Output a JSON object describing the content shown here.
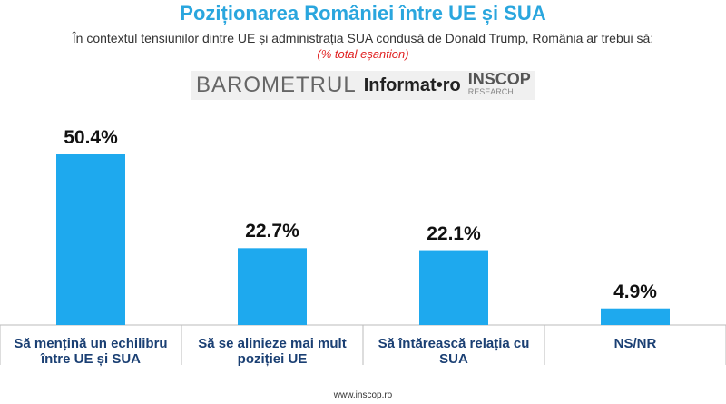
{
  "chart_data": {
    "type": "bar",
    "title": "Poziționarea României între UE și SUA",
    "subtitle": "În contextul tensiunilor dintre UE și administrația SUA condusă de Donald Trump, România ar trebui să:",
    "note": "(% total eșantion)",
    "logos": [
      "BAROMETRUL",
      "Informat•ro",
      "INSCOP",
      "RESEARCH"
    ],
    "categories": [
      "Să mențină un echilibru între UE și SUA",
      "Să se alinieze mai mult poziției UE",
      "Să întărească relația cu SUA",
      "NS/NR"
    ],
    "values": [
      50.4,
      22.7,
      22.1,
      4.9
    ],
    "value_labels": [
      "50.4%",
      "22.7%",
      "22.1%",
      "4.9%"
    ],
    "color": "#1ea9ee",
    "footer": "www.inscop.ro"
  }
}
